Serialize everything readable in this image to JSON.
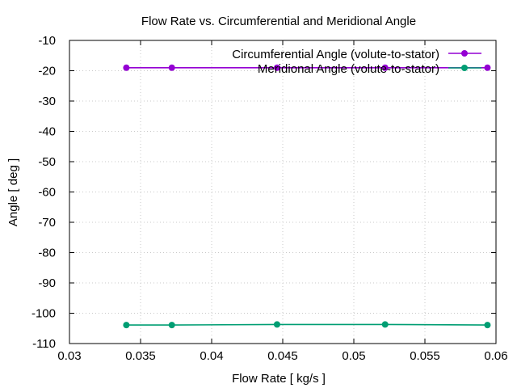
{
  "chart_data": {
    "type": "line",
    "title": "Flow Rate vs. Circumferential and Meridional Angle",
    "xlabel": "Flow Rate [ kg/s ]",
    "ylabel": "Angle [ deg ]",
    "xlim": [
      0.03,
      0.06
    ],
    "ylim": [
      -110,
      -10
    ],
    "xticks": [
      "0.03",
      "0.035",
      "0.04",
      "0.045",
      "0.05",
      "0.055",
      "0.06"
    ],
    "yticks": [
      "-10",
      "-20",
      "-30",
      "-40",
      "-50",
      "-60",
      "-70",
      "-80",
      "-90",
      "-100",
      "-110"
    ],
    "grid": true,
    "legend_position": "top-right",
    "series": [
      {
        "name": "Circumferential Angle (volute-to-stator)",
        "color": "#9400d3",
        "x": [
          0.034,
          0.0372,
          0.0446,
          0.0522,
          0.0594
        ],
        "y": [
          -19.0,
          -19.0,
          -19.0,
          -19.0,
          -19.0
        ]
      },
      {
        "name": "Meridional Angle (volute-to-stator)",
        "color": "#009e73",
        "x": [
          0.034,
          0.0372,
          0.0446,
          0.0522,
          0.0594
        ],
        "y": [
          -103.9,
          -103.9,
          -103.7,
          -103.7,
          -103.9
        ]
      }
    ]
  }
}
